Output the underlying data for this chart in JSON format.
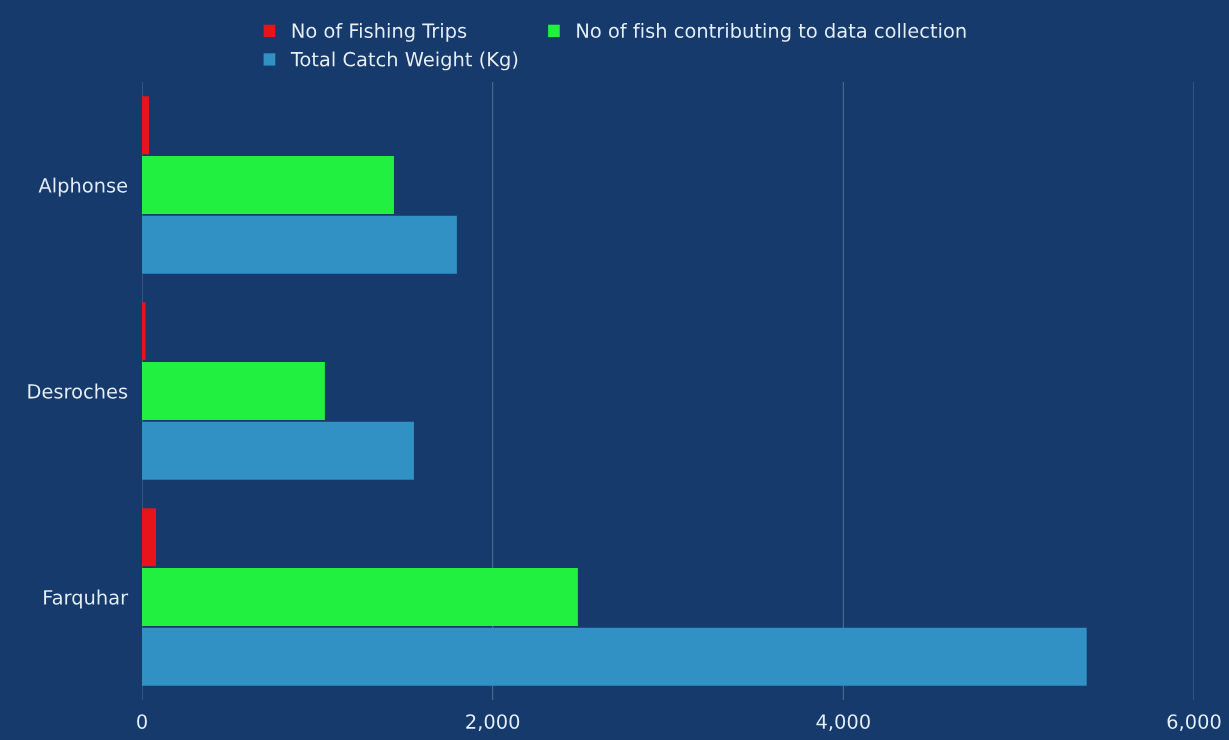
{
  "chart_data": {
    "type": "bar",
    "orientation": "horizontal",
    "categories": [
      "Alphonse",
      "Desroches",
      "Farquhar"
    ],
    "series": [
      {
        "name": "No of Fishing Trips",
        "color": "#e8141c",
        "values": [
          40,
          20,
          80
        ]
      },
      {
        "name": "No of fish contributing to data collection",
        "color": "#22f040",
        "values": [
          1437,
          1043,
          2486
        ]
      },
      {
        "name": "Total Catch Weight (Kg)",
        "color": "#3190c4",
        "values": [
          1796,
          1551,
          5388
        ]
      }
    ],
    "xlim": [
      0,
      6000
    ],
    "xticks": [
      0,
      {
        "value": 2000,
        "label": "2,000"
      },
      {
        "value": 4000,
        "label": "4,000"
      },
      {
        "value": 6000,
        "label": "6,000"
      }
    ],
    "grid": "x",
    "legend": "top"
  }
}
